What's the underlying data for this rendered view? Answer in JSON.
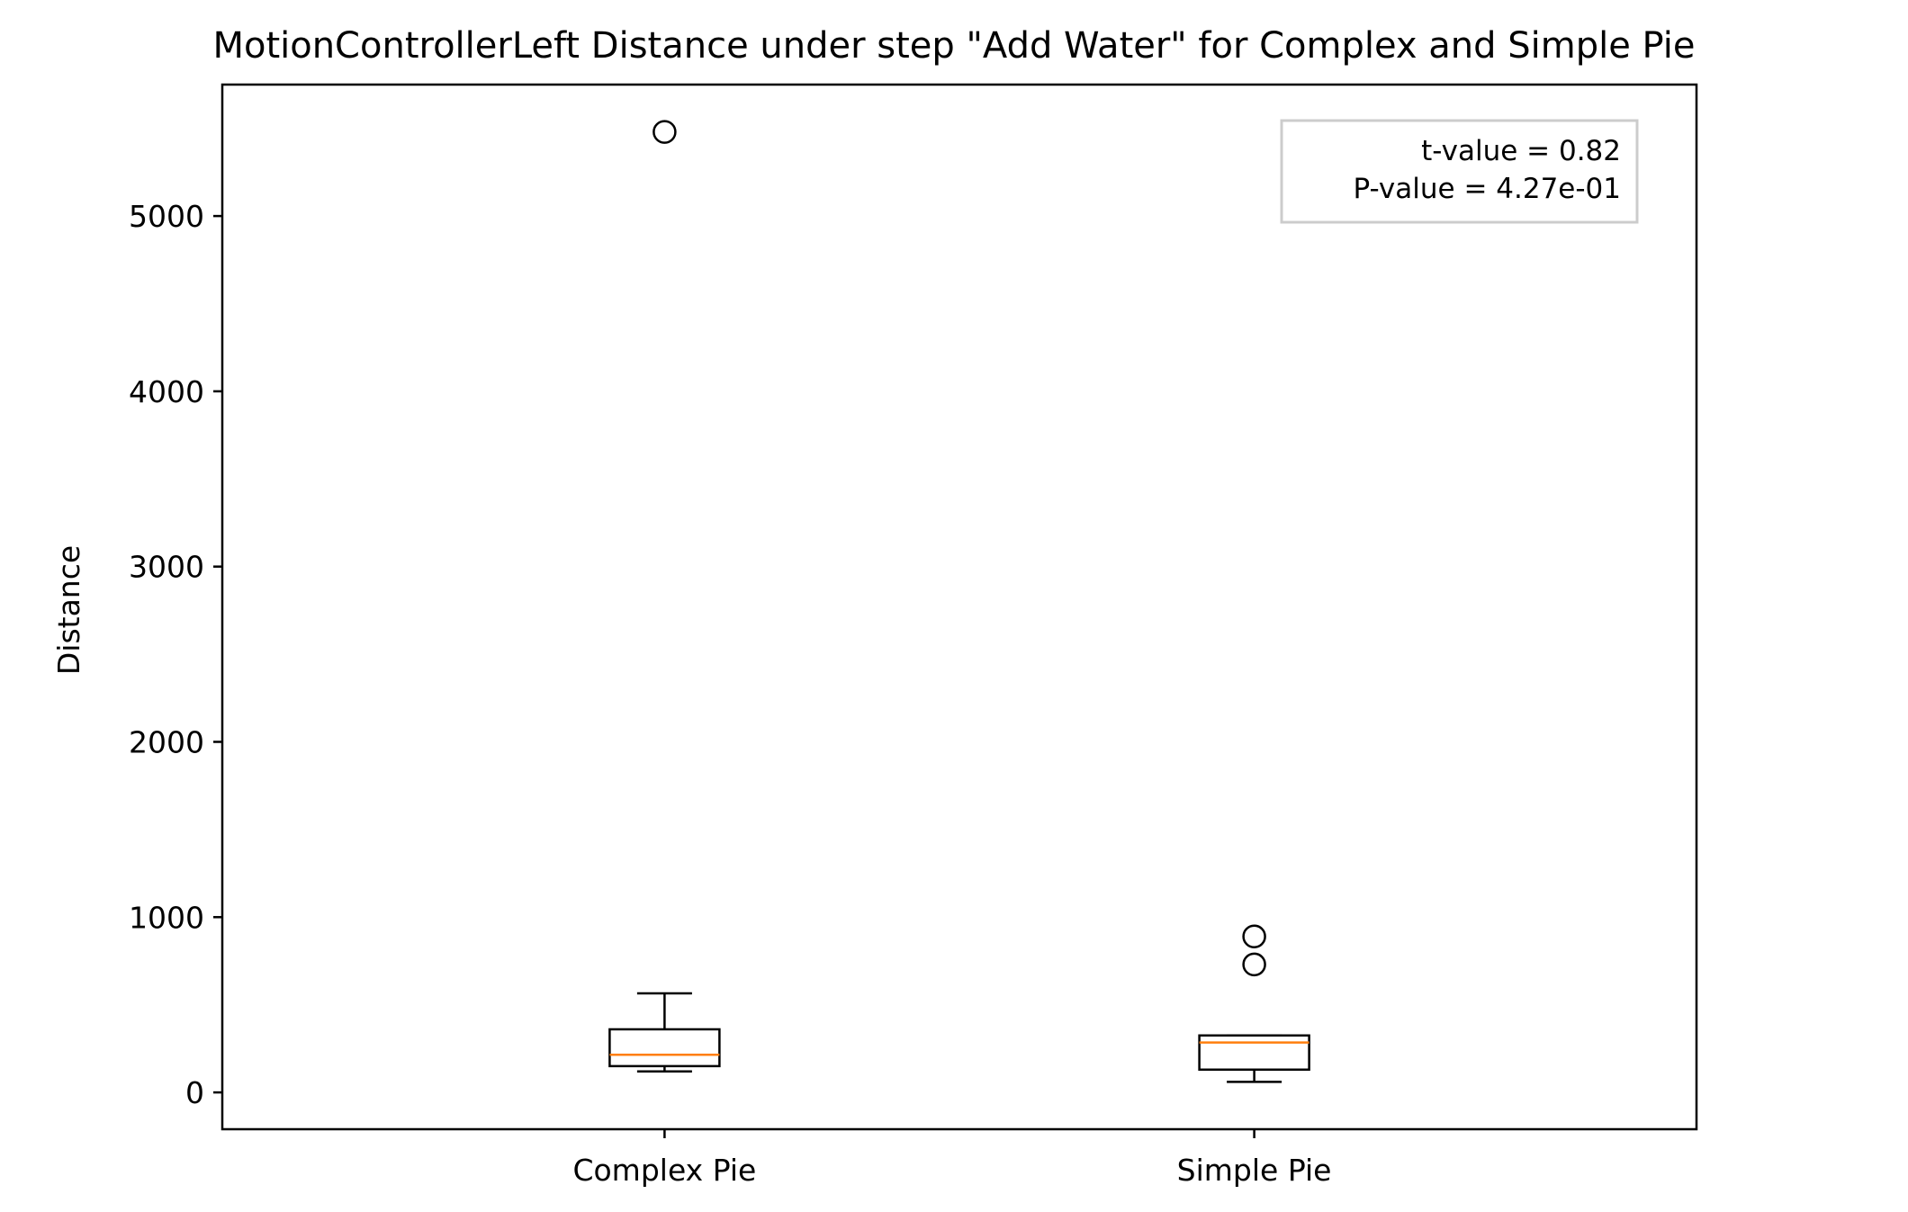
{
  "chart_data": {
    "type": "box",
    "title": "MotionControllerLeft Distance under step \"Add Water\" for Complex and Simple Pie",
    "xlabel": "",
    "ylabel": "Distance",
    "ylim": [
      -210,
      5750
    ],
    "yticks": [
      0,
      1000,
      2000,
      3000,
      4000,
      5000
    ],
    "categories": [
      "Complex Pie",
      "Simple Pie"
    ],
    "boxes": [
      {
        "category": "Complex Pie",
        "whisker_low": 120,
        "q1": 150,
        "median": 215,
        "q3": 360,
        "whisker_high": 565,
        "outliers": [
          5480
        ]
      },
      {
        "category": "Simple Pie",
        "whisker_low": 60,
        "q1": 130,
        "median": 285,
        "q3": 325,
        "whisker_high": 325,
        "outliers": [
          730,
          890
        ]
      }
    ],
    "annotation": {
      "lines": [
        "t-value = 0.82",
        "P-value = 4.27e-01"
      ],
      "placement": "top-right"
    },
    "colors": {
      "box": "#000000",
      "median": "#ff7f0e",
      "annotation_border": "#cccccc"
    },
    "grid": false
  }
}
